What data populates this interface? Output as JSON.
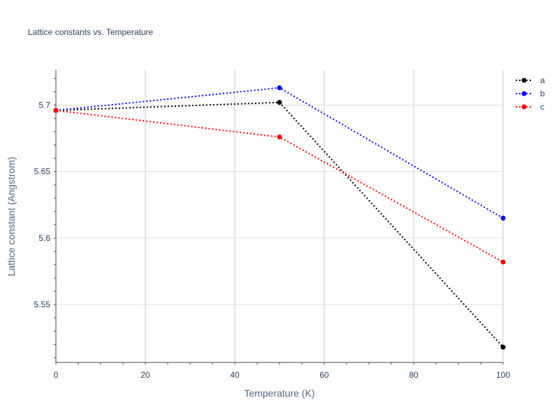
{
  "chart_data": {
    "type": "line",
    "title": "Lattice constants vs. Temperature",
    "xlabel": "Temperature (K)",
    "ylabel": "Lattice constant (Angstrom)",
    "xlim": [
      0,
      100
    ],
    "ylim": [
      5.5065,
      5.7265
    ],
    "x_ticks": [
      0,
      20,
      40,
      60,
      80,
      100
    ],
    "y_ticks": [
      5.55,
      5.6,
      5.65,
      5.7
    ],
    "y_tick_labels": [
      "5.55",
      "5.6",
      "5.65",
      "5.7"
    ],
    "grid": true,
    "legend_position": "top-right",
    "x": [
      0,
      50,
      100
    ],
    "series": [
      {
        "name": "a",
        "color": "#000000",
        "values": [
          5.696,
          5.702,
          5.518
        ]
      },
      {
        "name": "b",
        "color": "#0000ff",
        "values": [
          5.696,
          5.713,
          5.615
        ]
      },
      {
        "name": "c",
        "color": "#ff0000",
        "values": [
          5.696,
          5.676,
          5.582
        ]
      }
    ]
  }
}
